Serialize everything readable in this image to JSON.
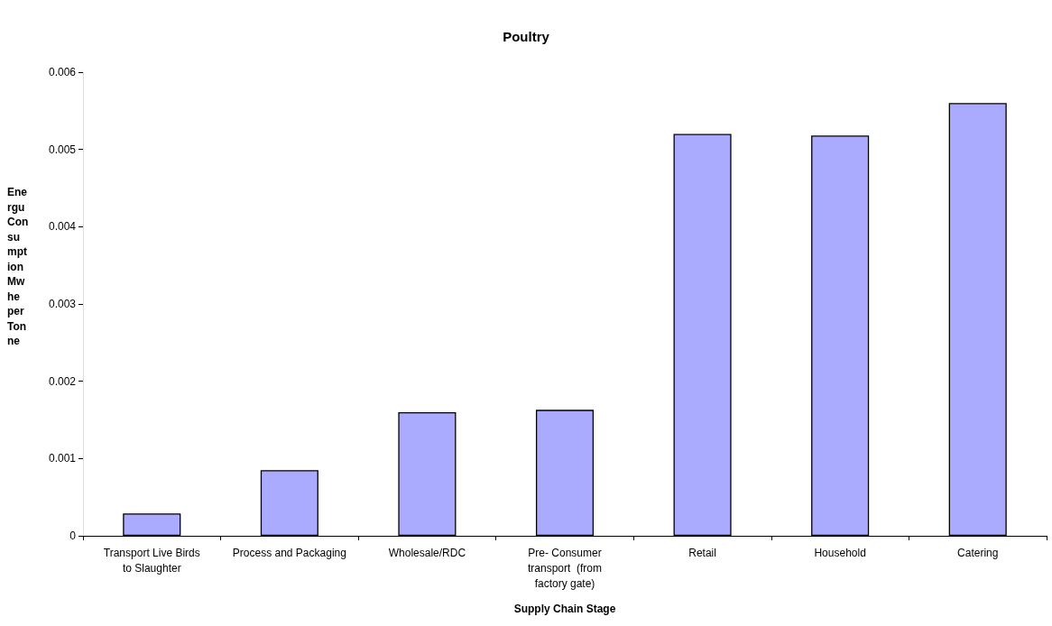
{
  "chart_data": {
    "type": "bar",
    "title": "Poultry",
    "xlabel": "Supply Chain Stage",
    "ylabel": "Energu Consumption Mwhe per Tonne",
    "categories": [
      "Transport Live Birds to Slaughter",
      "Process and Packaging",
      "Wholesale/RDC",
      "Pre- Consumer transport  (from factory gate)",
      "Retail",
      "Household",
      "Catering"
    ],
    "values": [
      0.00029,
      0.00085,
      0.0016,
      0.00163,
      0.0052,
      0.00518,
      0.0056
    ],
    "color": "#aaaaff",
    "ylim": [
      0,
      0.006
    ],
    "yticks": [
      0,
      0.001,
      0.002,
      0.003,
      0.004,
      0.005,
      0.006
    ],
    "grid": false
  }
}
